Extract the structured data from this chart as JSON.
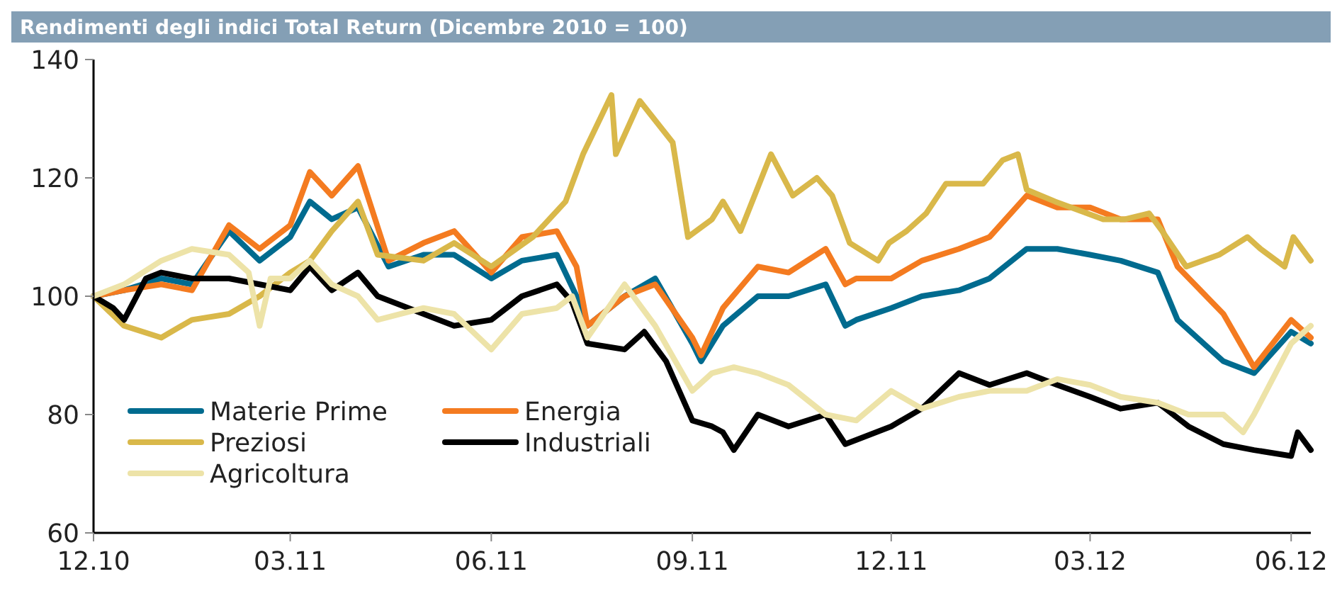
{
  "chart_data": {
    "type": "line",
    "title": "Rendimenti degli indici Total Return (Dicembre 2010 = 100)",
    "xlim": [
      "2010-12-01",
      "2012-06-10"
    ],
    "xticks": [
      {
        "value": "2010-12-01",
        "label": "12.10"
      },
      {
        "value": "2011-03-01",
        "label": "03.11"
      },
      {
        "value": "2011-06-01",
        "label": "06.11"
      },
      {
        "value": "2011-09-01",
        "label": "09.11"
      },
      {
        "value": "2011-12-01",
        "label": "12.11"
      },
      {
        "value": "2012-03-01",
        "label": "03.12"
      },
      {
        "value": "2012-06-01",
        "label": "06.12"
      }
    ],
    "ylim": [
      60,
      140
    ],
    "yticks": [
      60,
      80,
      100,
      120,
      140
    ],
    "grid": false,
    "legend": "bottom left",
    "line_style": "solid",
    "series": [
      {
        "name": "Materie Prime",
        "color": "#006b8f",
        "x": [
          "2010-12-01",
          "2010-12-15",
          "2011-01-01",
          "2011-01-15",
          "2011-02-01",
          "2011-02-15",
          "2011-03-01",
          "2011-03-10",
          "2011-03-20",
          "2011-04-01",
          "2011-04-15",
          "2011-05-01",
          "2011-05-15",
          "2011-06-01",
          "2011-06-15",
          "2011-07-01",
          "2011-07-10",
          "2011-07-15",
          "2011-08-01",
          "2011-08-15",
          "2011-09-01",
          "2011-09-05",
          "2011-09-15",
          "2011-10-01",
          "2011-10-15",
          "2011-11-01",
          "2011-11-10",
          "2011-11-15",
          "2011-12-01",
          "2011-12-15",
          "2012-01-01",
          "2012-01-15",
          "2012-02-01",
          "2012-02-15",
          "2012-03-01",
          "2012-03-15",
          "2012-04-01",
          "2012-04-10",
          "2012-05-01",
          "2012-05-15",
          "2012-06-01",
          "2012-06-10"
        ],
        "values": [
          100,
          101,
          103,
          102,
          111,
          106,
          110,
          116,
          113,
          115,
          105,
          107,
          107,
          103,
          106,
          107,
          100,
          95,
          100,
          103,
          92,
          89,
          95,
          100,
          100,
          102,
          95,
          96,
          98,
          100,
          101,
          103,
          108,
          108,
          107,
          106,
          104,
          96,
          89,
          87,
          94,
          92
        ]
      },
      {
        "name": "Energia",
        "color": "#f47b20",
        "x": [
          "2010-12-01",
          "2010-12-15",
          "2011-01-01",
          "2011-01-15",
          "2011-02-01",
          "2011-02-15",
          "2011-03-01",
          "2011-03-10",
          "2011-03-20",
          "2011-04-01",
          "2011-04-15",
          "2011-05-01",
          "2011-05-15",
          "2011-06-01",
          "2011-06-15",
          "2011-07-01",
          "2011-07-10",
          "2011-07-15",
          "2011-08-01",
          "2011-08-15",
          "2011-09-01",
          "2011-09-05",
          "2011-09-15",
          "2011-10-01",
          "2011-10-15",
          "2011-11-01",
          "2011-11-10",
          "2011-11-15",
          "2011-12-01",
          "2011-12-15",
          "2012-01-01",
          "2012-01-15",
          "2012-02-01",
          "2012-02-15",
          "2012-03-01",
          "2012-03-15",
          "2012-04-01",
          "2012-04-10",
          "2012-05-01",
          "2012-05-15",
          "2012-06-01",
          "2012-06-10"
        ],
        "values": [
          100,
          101,
          102,
          101,
          112,
          108,
          112,
          121,
          117,
          122,
          106,
          109,
          111,
          104,
          110,
          111,
          105,
          95,
          100,
          102,
          93,
          90,
          98,
          105,
          104,
          108,
          102,
          103,
          103,
          106,
          108,
          110,
          117,
          115,
          115,
          113,
          113,
          105,
          97,
          88,
          96,
          93
        ]
      },
      {
        "name": "Preziosi",
        "color": "#d9b84a",
        "x": [
          "2010-12-01",
          "2010-12-15",
          "2011-01-01",
          "2011-01-15",
          "2011-02-01",
          "2011-02-15",
          "2011-03-01",
          "2011-03-10",
          "2011-03-20",
          "2011-04-01",
          "2011-04-10",
          "2011-05-01",
          "2011-05-15",
          "2011-06-01",
          "2011-06-20",
          "2011-07-05",
          "2011-07-13",
          "2011-07-26",
          "2011-07-28",
          "2011-08-08",
          "2011-08-23",
          "2011-08-30",
          "2011-09-10",
          "2011-09-15",
          "2011-09-23",
          "2011-10-07",
          "2011-10-17",
          "2011-10-28",
          "2011-11-04",
          "2011-11-12",
          "2011-11-25",
          "2011-11-30",
          "2011-12-08",
          "2011-12-17",
          "2011-12-26",
          "2012-01-12",
          "2012-01-21",
          "2012-01-28",
          "2012-02-01",
          "2012-02-14",
          "2012-03-07",
          "2012-03-17",
          "2012-03-28",
          "2012-04-03",
          "2012-04-14",
          "2012-04-29",
          "2012-05-12",
          "2012-05-18",
          "2012-05-29",
          "2012-06-02",
          "2012-06-10"
        ],
        "values": [
          100,
          95,
          93,
          96,
          97,
          100,
          104,
          106,
          111,
          116,
          107,
          106,
          109,
          105,
          110,
          116,
          124,
          134,
          124,
          133,
          126,
          110,
          113,
          116,
          111,
          124,
          117,
          120,
          117,
          109,
          106,
          109,
          111,
          114,
          119,
          119,
          123,
          124,
          118,
          116,
          113,
          113,
          114,
          111,
          105,
          107,
          110,
          108,
          105,
          110,
          106
        ]
      },
      {
        "name": "Industriali",
        "color": "#000000",
        "x": [
          "2010-12-01",
          "2010-12-10",
          "2010-12-15",
          "2010-12-25",
          "2011-01-01",
          "2011-01-15",
          "2011-02-01",
          "2011-02-15",
          "2011-03-01",
          "2011-03-10",
          "2011-03-20",
          "2011-04-01",
          "2011-04-10",
          "2011-05-01",
          "2011-05-15",
          "2011-06-01",
          "2011-06-15",
          "2011-07-01",
          "2011-07-08",
          "2011-07-15",
          "2011-08-01",
          "2011-08-10",
          "2011-08-20",
          "2011-09-01",
          "2011-09-10",
          "2011-09-15",
          "2011-09-20",
          "2011-10-01",
          "2011-10-15",
          "2011-11-01",
          "2011-11-10",
          "2011-12-01",
          "2011-12-15",
          "2012-01-01",
          "2012-01-15",
          "2012-02-01",
          "2012-02-15",
          "2012-03-01",
          "2012-03-15",
          "2012-04-01",
          "2012-04-15",
          "2012-05-01",
          "2012-05-15",
          "2012-06-01",
          "2012-06-04",
          "2012-06-10"
        ],
        "values": [
          100,
          98,
          96,
          103,
          104,
          103,
          103,
          102,
          101,
          105,
          101,
          104,
          100,
          97,
          95,
          96,
          100,
          102,
          99,
          92,
          91,
          94,
          89,
          79,
          78,
          77,
          74,
          80,
          78,
          80,
          75,
          78,
          81,
          87,
          85,
          87,
          85,
          83,
          81,
          82,
          78,
          75,
          74,
          73,
          77,
          74
        ]
      },
      {
        "name": "Agricoltura",
        "color": "#ede3a8",
        "x": [
          "2010-12-01",
          "2010-12-15",
          "2011-01-01",
          "2011-01-15",
          "2011-02-01",
          "2011-02-10",
          "2011-02-15",
          "2011-02-20",
          "2011-03-01",
          "2011-03-10",
          "2011-03-20",
          "2011-04-01",
          "2011-04-10",
          "2011-05-01",
          "2011-05-15",
          "2011-06-01",
          "2011-06-15",
          "2011-07-01",
          "2011-07-08",
          "2011-07-15",
          "2011-08-01",
          "2011-08-15",
          "2011-09-01",
          "2011-09-10",
          "2011-09-20",
          "2011-10-01",
          "2011-10-15",
          "2011-11-01",
          "2011-11-15",
          "2011-12-01",
          "2011-12-15",
          "2012-01-01",
          "2012-01-15",
          "2012-02-01",
          "2012-02-15",
          "2012-03-01",
          "2012-03-15",
          "2012-04-01",
          "2012-04-15",
          "2012-05-01",
          "2012-05-10",
          "2012-05-15",
          "2012-06-01",
          "2012-06-10"
        ],
        "values": [
          100,
          102,
          106,
          108,
          107,
          104,
          95,
          103,
          103,
          106,
          102,
          100,
          96,
          98,
          97,
          91,
          97,
          98,
          100,
          93,
          102,
          95,
          84,
          87,
          88,
          87,
          85,
          80,
          79,
          84,
          81,
          83,
          84,
          84,
          86,
          85,
          83,
          82,
          80,
          80,
          77,
          80,
          92,
          95
        ]
      }
    ]
  }
}
